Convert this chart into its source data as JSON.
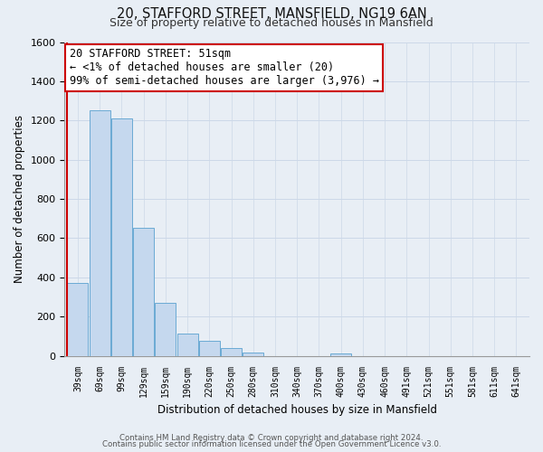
{
  "title_line1": "20, STAFFORD STREET, MANSFIELD, NG19 6AN",
  "title_line2": "Size of property relative to detached houses in Mansfield",
  "xlabel": "Distribution of detached houses by size in Mansfield",
  "ylabel": "Number of detached properties",
  "bar_labels": [
    "39sqm",
    "69sqm",
    "99sqm",
    "129sqm",
    "159sqm",
    "190sqm",
    "220sqm",
    "250sqm",
    "280sqm",
    "310sqm",
    "340sqm",
    "370sqm",
    "400sqm",
    "430sqm",
    "460sqm",
    "491sqm",
    "521sqm",
    "551sqm",
    "581sqm",
    "611sqm",
    "641sqm"
  ],
  "bar_values": [
    370,
    1250,
    1210,
    655,
    270,
    115,
    75,
    38,
    18,
    0,
    0,
    0,
    14,
    0,
    0,
    0,
    0,
    0,
    0,
    0,
    0
  ],
  "bar_color": "#c5d8ee",
  "bar_edge_color": "#6aaad4",
  "highlight_color": "#cc0000",
  "ylim": [
    0,
    1600
  ],
  "yticks": [
    0,
    200,
    400,
    600,
    800,
    1000,
    1200,
    1400,
    1600
  ],
  "annotation_title": "20 STAFFORD STREET: 51sqm",
  "annotation_line1": "← <1% of detached houses are smaller (20)",
  "annotation_line2": "99% of semi-detached houses are larger (3,976) →",
  "annotation_box_color": "#ffffff",
  "annotation_box_edge": "#cc0000",
  "grid_color": "#ccd8e8",
  "background_color": "#e8eef5",
  "footer_line1": "Contains HM Land Registry data © Crown copyright and database right 2024.",
  "footer_line2": "Contains public sector information licensed under the Open Government Licence v3.0."
}
